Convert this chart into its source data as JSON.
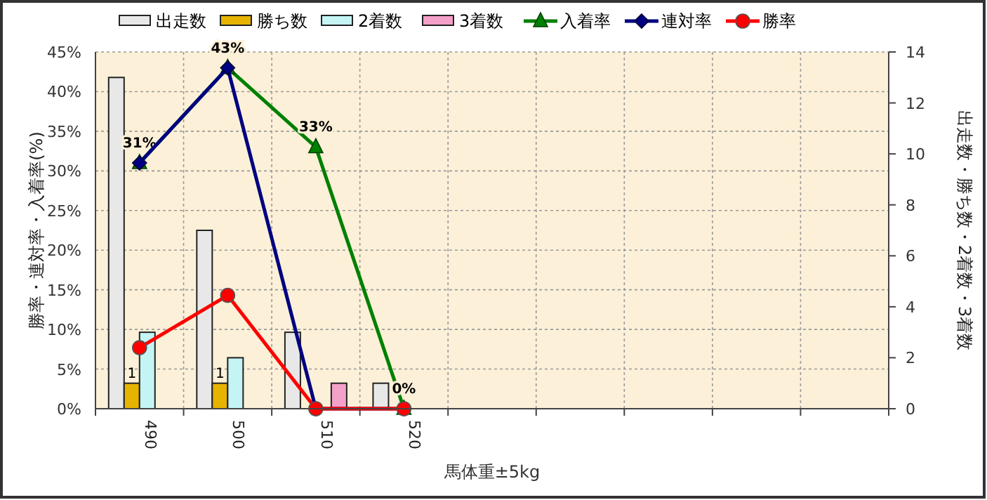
{
  "chart_data": {
    "type": "bar",
    "xlabel": "馬体重±5kg",
    "ylabel": "勝率・連対率・入着率(%)",
    "y2label": "出走数・勝ち数・2着数・3着数",
    "categories": [
      "490",
      "500",
      "510",
      "520",
      null,
      null,
      null,
      null,
      null
    ],
    "series": [
      {
        "name": "出走数",
        "axis": "y2",
        "color": "#e8e8e8",
        "values": [
          13,
          7,
          3,
          1,
          null,
          null,
          null,
          null,
          null
        ]
      },
      {
        "name": "勝ち数",
        "axis": "y2",
        "color": "#e6b400",
        "values": [
          1,
          1,
          0,
          0,
          null,
          null,
          null,
          null,
          null
        ],
        "value_labels": [
          "1",
          "1",
          null,
          null,
          null,
          null,
          null,
          null,
          null
        ]
      },
      {
        "name": "2着数",
        "axis": "y2",
        "color": "#c4f4f4",
        "values": [
          3,
          2,
          0,
          0,
          null,
          null,
          null,
          null,
          null
        ]
      },
      {
        "name": "3着数",
        "axis": "y2",
        "color": "#f4a0c8",
        "values": [
          0,
          0,
          1,
          0,
          null,
          null,
          null,
          null,
          null
        ]
      },
      {
        "name": "入着率",
        "type": "line",
        "color": "#008000",
        "marker": "triangle",
        "values": [
          31,
          43,
          33,
          0,
          null,
          null,
          null,
          null,
          null
        ],
        "value_labels": [
          "31%",
          "43%",
          "33%",
          "0%",
          null,
          null,
          null,
          null,
          null
        ]
      },
      {
        "name": "連対率",
        "type": "line",
        "color": "#000080",
        "marker": "diamond",
        "values": [
          31,
          43,
          0,
          0,
          null,
          null,
          null,
          null,
          null
        ]
      },
      {
        "name": "勝率",
        "type": "line",
        "color": "#ff0000",
        "marker": "circle",
        "values": [
          7.7,
          14.3,
          0,
          0,
          null,
          null,
          null,
          null,
          null
        ]
      }
    ],
    "ylim": [
      0,
      45
    ],
    "yticks": [
      {
        "value": 0,
        "label": "0%"
      },
      {
        "value": 5,
        "label": "5%"
      },
      {
        "value": 10,
        "label": "10%"
      },
      {
        "value": 15,
        "label": "15%"
      },
      {
        "value": 20,
        "label": "20%"
      },
      {
        "value": 25,
        "label": "25%"
      },
      {
        "value": 30,
        "label": "30%"
      },
      {
        "value": 35,
        "label": "35%"
      },
      {
        "value": 40,
        "label": "40%"
      },
      {
        "value": 45,
        "label": "45%"
      }
    ],
    "y2lim": [
      0,
      14
    ],
    "y2ticks": [
      0,
      2,
      4,
      6,
      8,
      10,
      12,
      14
    ],
    "grid": true,
    "legend": "top"
  }
}
